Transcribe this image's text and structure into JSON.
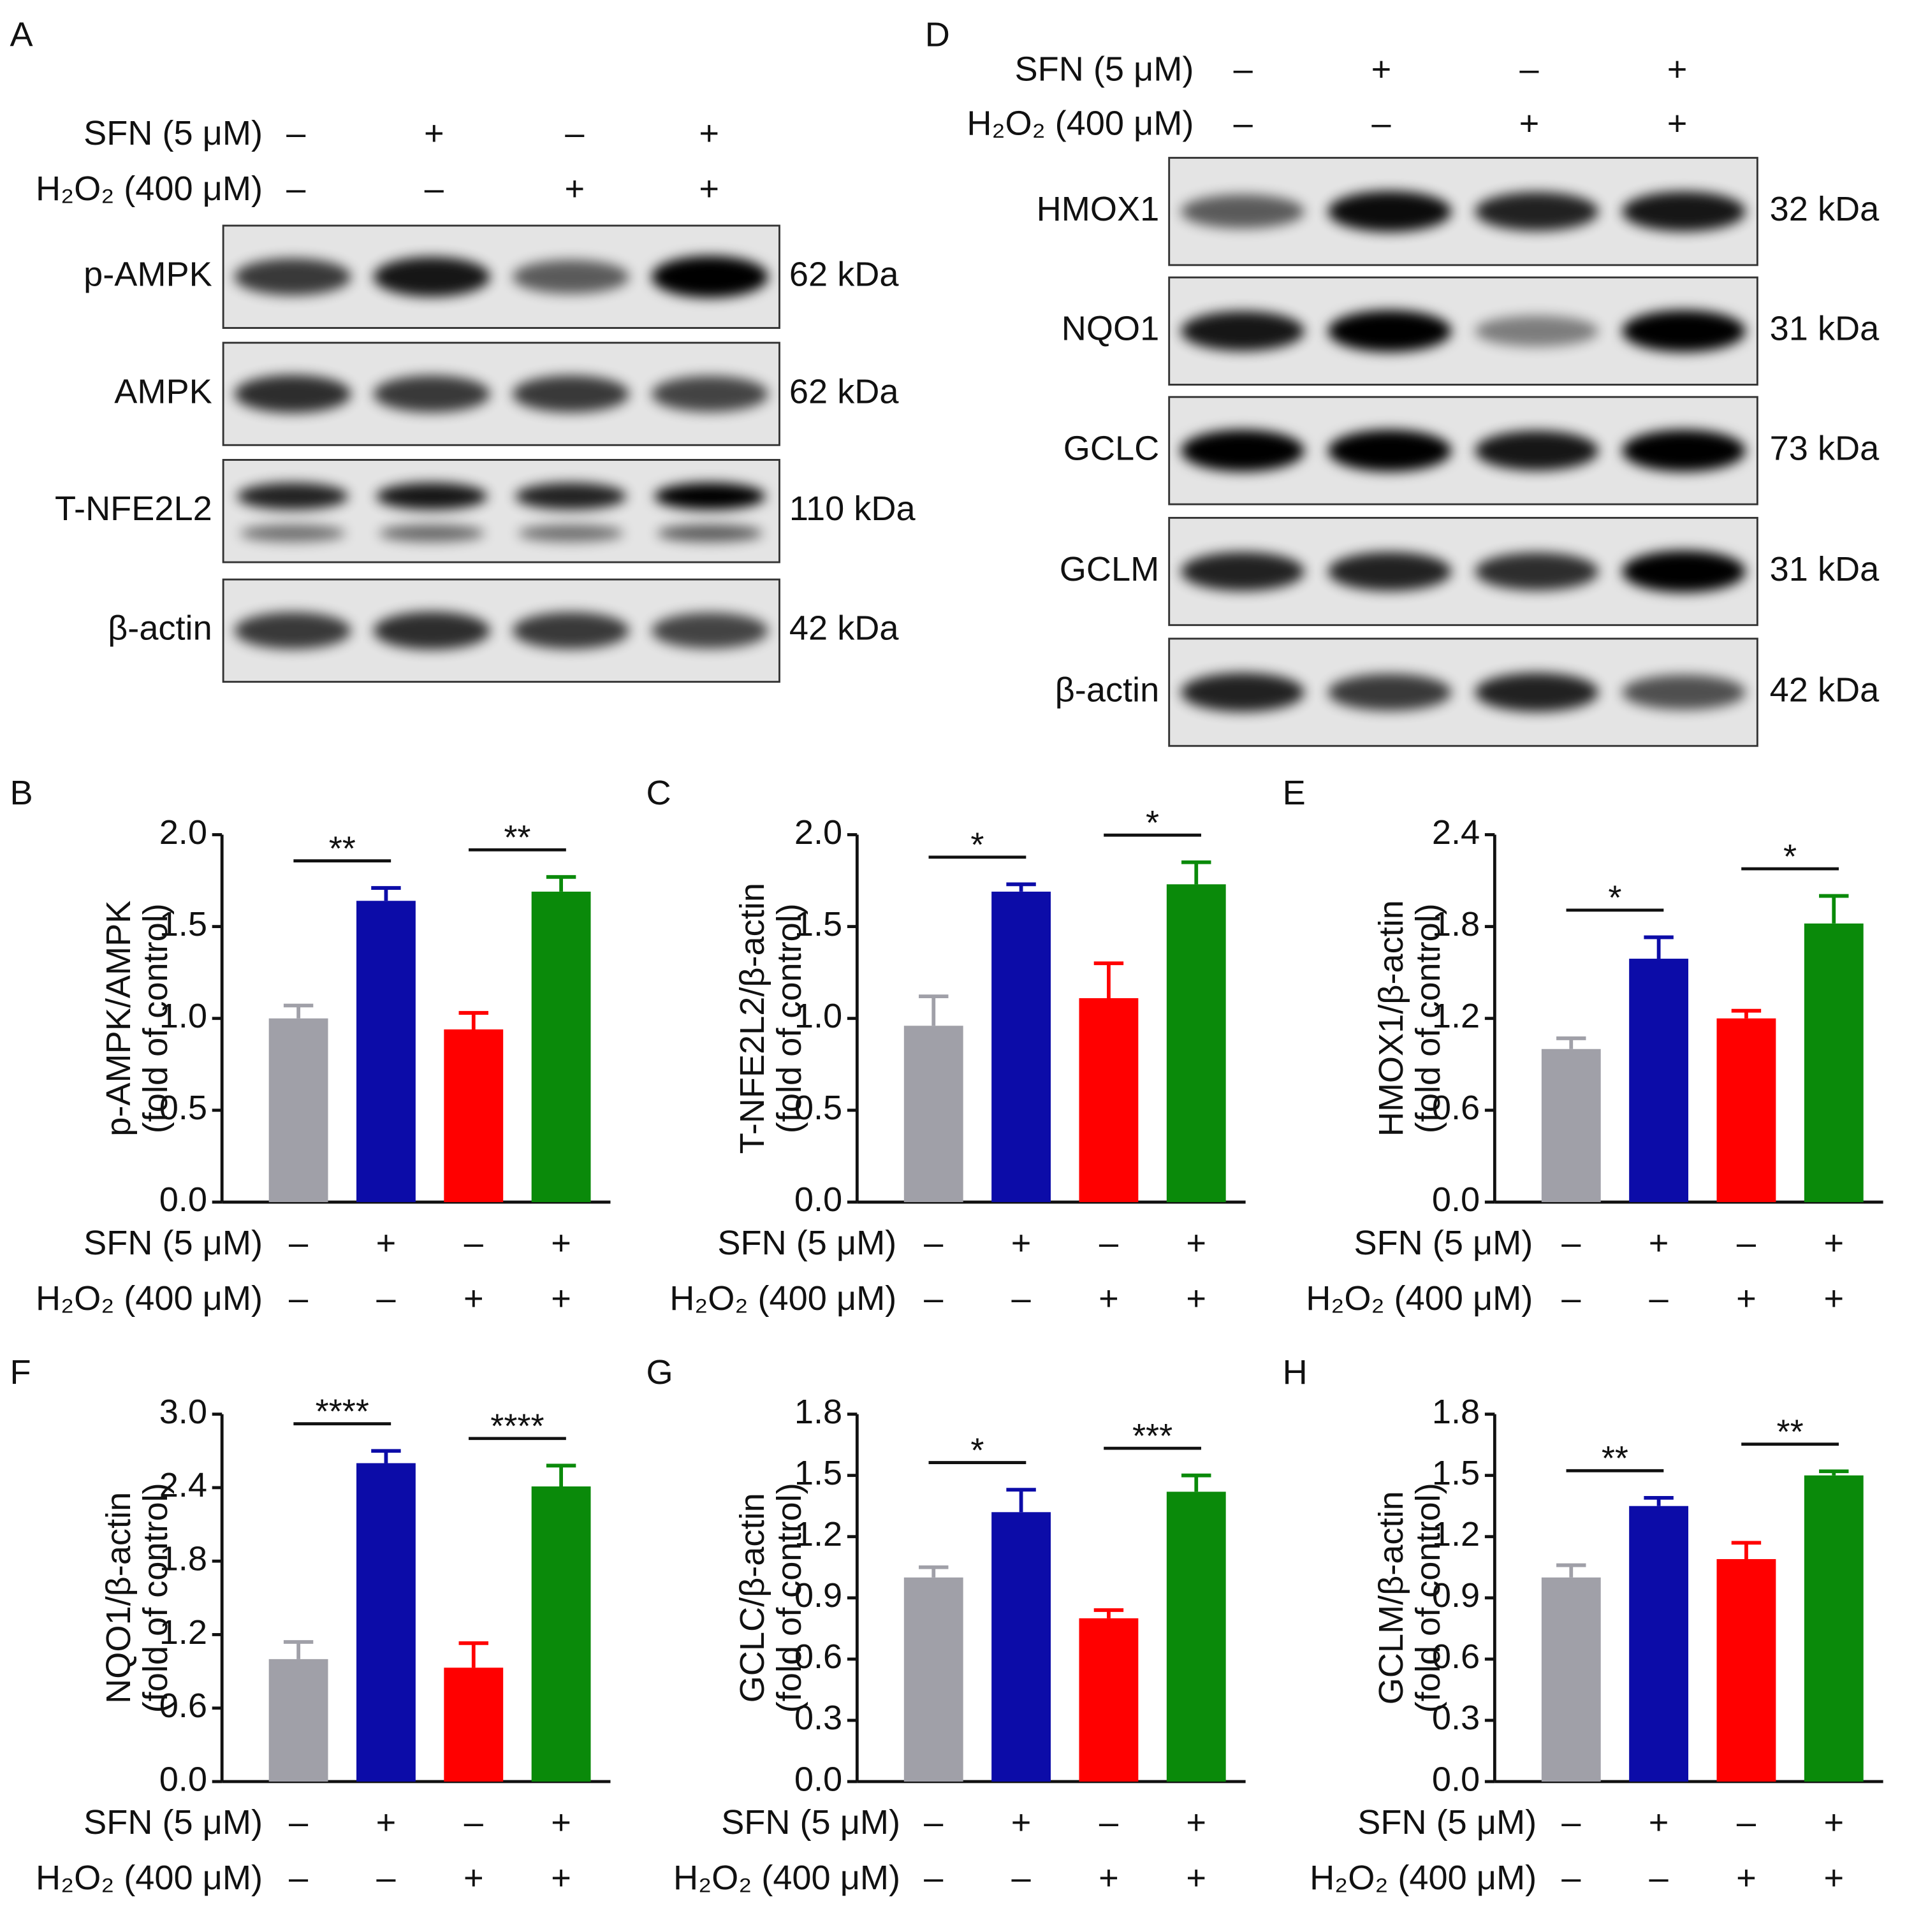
{
  "blots": [
    {
      "panel": "A",
      "treatments": [
        {
          "name": "SFN (5 μM)",
          "marks": [
            "–",
            "+",
            "–",
            "+"
          ]
        },
        {
          "name": "H₂O₂ (400 μM)",
          "marks": [
            "–",
            "–",
            "+",
            "+"
          ]
        }
      ],
      "rows": [
        {
          "label": "p-AMPK",
          "size": "62 kDa"
        },
        {
          "label": "AMPK",
          "size": "62 kDa"
        },
        {
          "label": "T-NFE2L2",
          "size": "110 kDa"
        },
        {
          "label": "β-actin",
          "size": "42 kDa"
        }
      ]
    },
    {
      "panel": "D",
      "treatments": [
        {
          "name": "SFN (5 μM)",
          "marks": [
            "–",
            "+",
            "–",
            "+"
          ]
        },
        {
          "name": "H₂O₂ (400 μM)",
          "marks": [
            "–",
            "–",
            "+",
            "+"
          ]
        }
      ],
      "rows": [
        {
          "label": "HMOX1",
          "size": "32 kDa"
        },
        {
          "label": "NQO1",
          "size": "31 kDa"
        },
        {
          "label": "GCLC",
          "size": "73 kDa"
        },
        {
          "label": "GCLM",
          "size": "31 kDa"
        },
        {
          "label": "β-actin",
          "size": "42 kDa"
        }
      ]
    }
  ],
  "chart_data": [
    {
      "type": "bar",
      "panel": "B",
      "ylabel": [
        "p-AMPK/AMPK",
        "(fold of control)"
      ],
      "categories": [
        null,
        null,
        null,
        null
      ],
      "values": [
        1.0,
        1.64,
        0.94,
        1.69
      ],
      "errors": [
        0.07,
        0.07,
        0.09,
        0.08
      ],
      "colors": [
        "#a0a0a8",
        "#0c0ca8",
        "#ff0000",
        "#0a8a0a"
      ],
      "ylim": [
        0,
        2.0
      ],
      "yticks": [
        {
          "value": 0,
          "label": "0.0"
        },
        0.5,
        {
          "value": 1,
          "label": "1.0"
        },
        1.5,
        {
          "value": 2,
          "label": "2.0"
        }
      ],
      "significance": [
        "**",
        "**"
      ],
      "treatments": [
        {
          "name": "SFN (5 μM)",
          "marks": [
            "–",
            "+",
            "–",
            "+"
          ]
        },
        {
          "name": "H₂O₂ (400 μM)",
          "marks": [
            "–",
            "–",
            "+",
            "+"
          ]
        }
      ]
    },
    {
      "type": "bar",
      "panel": "C",
      "ylabel": [
        "T-NFE2L2/β-actin",
        "(fold of control)"
      ],
      "categories": [
        null,
        null,
        null,
        null
      ],
      "values": [
        0.96,
        1.69,
        1.11,
        1.73
      ],
      "errors": [
        0.16,
        0.04,
        0.19,
        0.12
      ],
      "colors": [
        "#a0a0a8",
        "#0c0ca8",
        "#ff0000",
        "#0a8a0a"
      ],
      "ylim": [
        0,
        2.0
      ],
      "yticks": [
        {
          "value": 0,
          "label": "0.0"
        },
        0.5,
        {
          "value": 1,
          "label": "1.0"
        },
        1.5,
        {
          "value": 2,
          "label": "2.0"
        }
      ],
      "significance": [
        "*",
        "*"
      ],
      "treatments": [
        {
          "name": "SFN (5 μM)",
          "marks": [
            "–",
            "+",
            "–",
            "+"
          ]
        },
        {
          "name": "H₂O₂ (400 μM)",
          "marks": [
            "–",
            "–",
            "+",
            "+"
          ]
        }
      ]
    },
    {
      "type": "bar",
      "panel": "E",
      "ylabel": [
        "HMOX1/β-actin",
        "(fold of control)"
      ],
      "categories": [
        null,
        null,
        null,
        null
      ],
      "values": [
        1.0,
        1.59,
        1.2,
        1.82
      ],
      "errors": [
        0.07,
        0.14,
        0.05,
        0.18
      ],
      "colors": [
        "#a0a0a8",
        "#0c0ca8",
        "#ff0000",
        "#0a8a0a"
      ],
      "ylim": [
        0,
        2.4
      ],
      "yticks": [
        {
          "value": 0,
          "label": "0.0"
        },
        0.6,
        1.2,
        1.8,
        2.4
      ],
      "significance": [
        "*",
        "*"
      ],
      "treatments": [
        {
          "name": "SFN (5 μM)",
          "marks": [
            "–",
            "+",
            "–",
            "+"
          ]
        },
        {
          "name": "H₂O₂ (400 μM)",
          "marks": [
            "–",
            "–",
            "+",
            "+"
          ]
        }
      ]
    },
    {
      "type": "bar",
      "panel": "F",
      "ylabel": [
        "NQO1/β-actin",
        "(fold of control)"
      ],
      "categories": [
        null,
        null,
        null,
        null
      ],
      "values": [
        1.0,
        2.6,
        0.93,
        2.41
      ],
      "errors": [
        0.14,
        0.1,
        0.2,
        0.17
      ],
      "colors": [
        "#a0a0a8",
        "#0c0ca8",
        "#ff0000",
        "#0a8a0a"
      ],
      "ylim": [
        0,
        3.0
      ],
      "yticks": [
        {
          "value": 0,
          "label": "0.0"
        },
        0.6,
        1.2,
        1.8,
        2.4,
        {
          "value": 3,
          "label": "3.0"
        }
      ],
      "significance": [
        "****",
        "****"
      ],
      "treatments": [
        {
          "name": "SFN (5 μM)",
          "marks": [
            "–",
            "+",
            "–",
            "+"
          ]
        },
        {
          "name": "H₂O₂ (400 μM)",
          "marks": [
            "–",
            "–",
            "+",
            "+"
          ]
        }
      ]
    },
    {
      "type": "bar",
      "panel": "G",
      "ylabel": [
        "GCLC/β-actin",
        "(fold of control)"
      ],
      "categories": [
        null,
        null,
        null,
        null
      ],
      "values": [
        1.0,
        1.32,
        0.8,
        1.42
      ],
      "errors": [
        0.05,
        0.11,
        0.04,
        0.08
      ],
      "colors": [
        "#a0a0a8",
        "#0c0ca8",
        "#ff0000",
        "#0a8a0a"
      ],
      "ylim": [
        0,
        1.8
      ],
      "yticks": [
        {
          "value": 0,
          "label": "0.0"
        },
        0.3,
        0.6,
        0.9,
        1.2,
        1.5,
        1.8
      ],
      "significance": [
        "*",
        "***"
      ],
      "treatments": [
        {
          "name": "SFN (5 μM)",
          "marks": [
            "–",
            "+",
            "–",
            "+"
          ]
        },
        {
          "name": "H₂O₂ (400 μM)",
          "marks": [
            "–",
            "–",
            "+",
            "+"
          ]
        }
      ]
    },
    {
      "type": "bar",
      "panel": "H",
      "ylabel": [
        "GCLM/β-actin",
        "(fold of control)"
      ],
      "categories": [
        null,
        null,
        null,
        null
      ],
      "values": [
        1.0,
        1.35,
        1.09,
        1.5
      ],
      "errors": [
        0.06,
        0.04,
        0.08,
        0.02
      ],
      "colors": [
        "#a0a0a8",
        "#0c0ca8",
        "#ff0000",
        "#0a8a0a"
      ],
      "ylim": [
        0,
        1.8
      ],
      "yticks": [
        {
          "value": 0,
          "label": "0.0"
        },
        0.3,
        0.6,
        0.9,
        1.2,
        1.5,
        1.8
      ],
      "significance": [
        "**",
        "**"
      ],
      "treatments": [
        {
          "name": "SFN (5 μM)",
          "marks": [
            "–",
            "+",
            "–",
            "+"
          ]
        },
        {
          "name": "H₂O₂ (400 μM)",
          "marks": [
            "–",
            "–",
            "+",
            "+"
          ]
        }
      ]
    }
  ]
}
